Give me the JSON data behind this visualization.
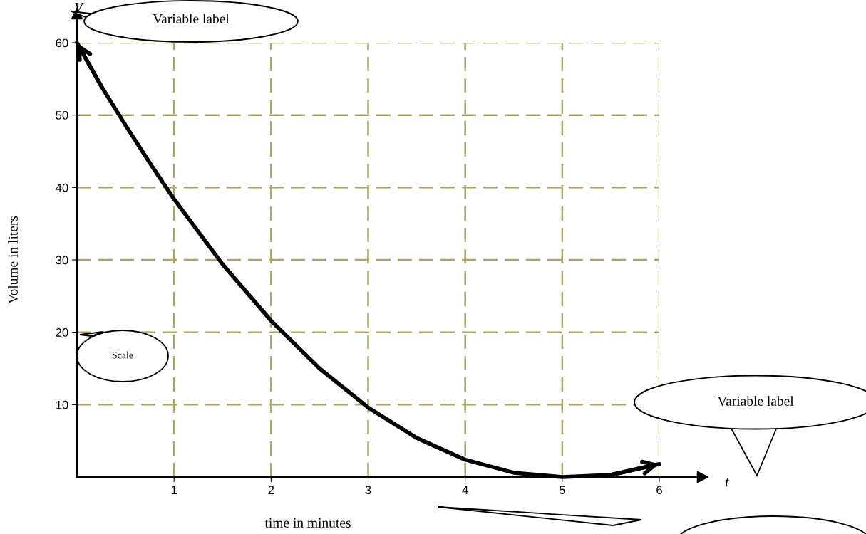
{
  "chart_data": {
    "type": "line",
    "xlabel": "time in minutes",
    "ylabel": "Volume in liters",
    "x": [
      0,
      0.25,
      0.5,
      0.75,
      1,
      1.5,
      2,
      2.5,
      3,
      3.5,
      4,
      4.5,
      5,
      5.5,
      6
    ],
    "series": [
      {
        "color": "#000000",
        "values": [
          60,
          54,
          48.6,
          43.4,
          38.4,
          29.4,
          21.6,
          15,
          9.6,
          5.4,
          2.4,
          0.6,
          0,
          0.3,
          1.8
        ]
      }
    ],
    "xlim": [
      0,
      6
    ],
    "ylim": [
      0,
      60
    ],
    "xticks": [
      1,
      2,
      3,
      4,
      5,
      6
    ],
    "yticks": [
      10,
      20,
      30,
      40,
      50,
      60
    ],
    "grid": true,
    "line_style": "solid",
    "annotations": [
      "V",
      "t",
      "Variable label",
      "Scale",
      "Variable label"
    ]
  }
}
